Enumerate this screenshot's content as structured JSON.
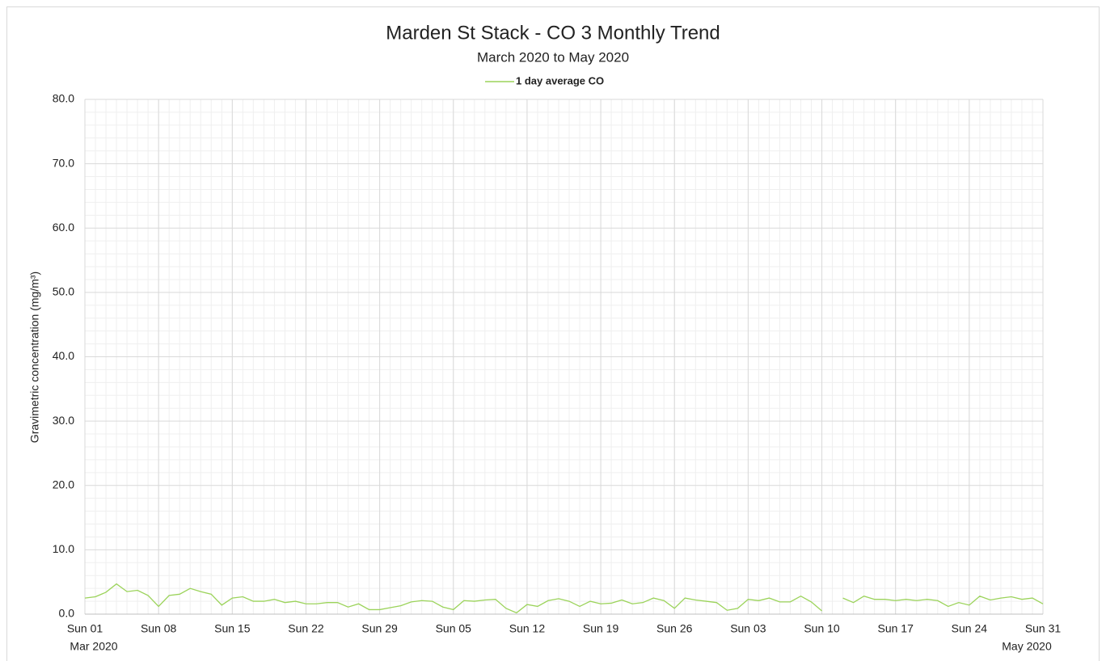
{
  "chart_data": {
    "type": "line",
    "title": "Marden St Stack - CO 3 Monthly Trend",
    "subtitle": "March 2020 to May 2020",
    "y_label": "Gravimetric concentration (mg/m³)",
    "legend": "top",
    "grid": true,
    "minor_grid": true,
    "ylim": [
      0,
      80
    ],
    "yticks": [
      {
        "value": 0,
        "label": "0.0"
      },
      {
        "value": 10,
        "label": "10.0"
      },
      {
        "value": 20,
        "label": "20.0"
      },
      {
        "value": 30,
        "label": "30.0"
      },
      {
        "value": 40,
        "label": "40.0"
      },
      {
        "value": 50,
        "label": "50.0"
      },
      {
        "value": 60,
        "label": "60.0"
      },
      {
        "value": 70,
        "label": "70.0"
      },
      {
        "value": 80,
        "label": "80.0"
      }
    ],
    "xlim": [
      "2020-03-01",
      "2020-05-31"
    ],
    "xticks": [
      {
        "value": "2020-03-01",
        "label": "Sun 01"
      },
      {
        "value": "2020-03-08",
        "label": "Sun 08"
      },
      {
        "value": "2020-03-15",
        "label": "Sun 15"
      },
      {
        "value": "2020-03-22",
        "label": "Sun 22"
      },
      {
        "value": "2020-03-29",
        "label": "Sun 29"
      },
      {
        "value": "2020-04-05",
        "label": "Sun 05"
      },
      {
        "value": "2020-04-12",
        "label": "Sun 12"
      },
      {
        "value": "2020-04-19",
        "label": "Sun 19"
      },
      {
        "value": "2020-04-26",
        "label": "Sun 26"
      },
      {
        "value": "2020-05-03",
        "label": "Sun 03"
      },
      {
        "value": "2020-05-10",
        "label": "Sun 10"
      },
      {
        "value": "2020-05-17",
        "label": "Sun 17"
      },
      {
        "value": "2020-05-24",
        "label": "Sun 24"
      },
      {
        "value": "2020-05-31",
        "label": "Sun 31"
      }
    ],
    "x_group_labels": [
      {
        "value": "2020-03-01",
        "label": "Mar 2020"
      },
      {
        "value": "2020-05-31",
        "label": "May 2020"
      }
    ],
    "x": [
      "2020-03-01",
      "2020-03-02",
      "2020-03-03",
      "2020-03-04",
      "2020-03-05",
      "2020-03-06",
      "2020-03-07",
      "2020-03-08",
      "2020-03-09",
      "2020-03-10",
      "2020-03-11",
      "2020-03-12",
      "2020-03-13",
      "2020-03-14",
      "2020-03-15",
      "2020-03-16",
      "2020-03-17",
      "2020-03-18",
      "2020-03-19",
      "2020-03-20",
      "2020-03-21",
      "2020-03-22",
      "2020-03-23",
      "2020-03-24",
      "2020-03-25",
      "2020-03-26",
      "2020-03-27",
      "2020-03-28",
      "2020-03-29",
      "2020-03-30",
      "2020-03-31",
      "2020-04-01",
      "2020-04-02",
      "2020-04-03",
      "2020-04-04",
      "2020-04-05",
      "2020-04-06",
      "2020-04-07",
      "2020-04-08",
      "2020-04-09",
      "2020-04-10",
      "2020-04-11",
      "2020-04-12",
      "2020-04-13",
      "2020-04-14",
      "2020-04-15",
      "2020-04-16",
      "2020-04-17",
      "2020-04-18",
      "2020-04-19",
      "2020-04-20",
      "2020-04-21",
      "2020-04-22",
      "2020-04-23",
      "2020-04-24",
      "2020-04-25",
      "2020-04-26",
      "2020-04-27",
      "2020-04-28",
      "2020-04-29",
      "2020-04-30",
      "2020-05-01",
      "2020-05-02",
      "2020-05-03",
      "2020-05-04",
      "2020-05-05",
      "2020-05-06",
      "2020-05-07",
      "2020-05-08",
      "2020-05-09",
      "2020-05-10",
      "2020-05-11",
      "2020-05-12",
      "2020-05-13",
      "2020-05-14",
      "2020-05-15",
      "2020-05-16",
      "2020-05-17",
      "2020-05-18",
      "2020-05-19",
      "2020-05-20",
      "2020-05-21",
      "2020-05-22",
      "2020-05-23",
      "2020-05-24",
      "2020-05-25",
      "2020-05-26",
      "2020-05-27",
      "2020-05-28",
      "2020-05-29",
      "2020-05-30",
      "2020-05-31"
    ],
    "series": [
      {
        "name": "1 day average CO",
        "color": "#9bd35a",
        "values": [
          2.5,
          2.7,
          3.4,
          4.7,
          3.5,
          3.7,
          2.9,
          1.2,
          2.9,
          3.1,
          4.0,
          3.5,
          3.1,
          1.4,
          2.5,
          2.7,
          2.0,
          2.0,
          2.3,
          1.8,
          2.0,
          1.6,
          1.6,
          1.8,
          1.8,
          1.1,
          1.6,
          0.7,
          0.7,
          1.0,
          1.3,
          1.9,
          2.1,
          2.0,
          1.1,
          0.7,
          2.1,
          2.0,
          2.2,
          2.3,
          0.9,
          0.2,
          1.5,
          1.2,
          2.1,
          2.4,
          2.0,
          1.2,
          2.0,
          1.6,
          1.7,
          2.2,
          1.6,
          1.8,
          2.5,
          2.1,
          0.9,
          2.5,
          2.2,
          2.0,
          1.8,
          0.6,
          0.9,
          2.3,
          2.1,
          2.5,
          1.9,
          1.9,
          2.8,
          1.9,
          0.5,
          null,
          2.5,
          1.8,
          2.8,
          2.3,
          2.3,
          2.1,
          2.3,
          2.1,
          2.3,
          2.1,
          1.2,
          1.8,
          1.4,
          2.8,
          2.2,
          2.5,
          2.7,
          2.3,
          2.5,
          1.6
        ]
      }
    ]
  }
}
